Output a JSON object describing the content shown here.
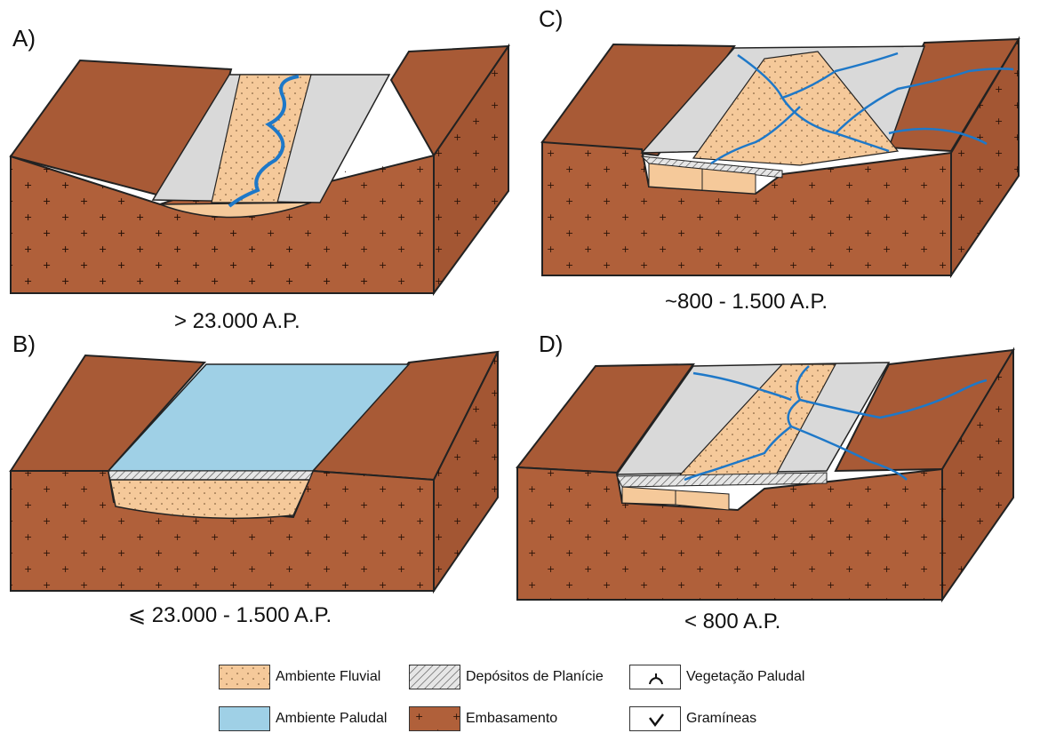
{
  "panels": [
    {
      "id": "A",
      "letter": "A)",
      "caption": "> 23.000 A.P."
    },
    {
      "id": "B",
      "letter": "B)",
      "caption": "⩽ 23.000 - 1.500 A.P."
    },
    {
      "id": "C",
      "letter": "C)",
      "caption": "~800 - 1.500 A.P."
    },
    {
      "id": "D",
      "letter": "D)",
      "caption": "< 800 A.P."
    }
  ],
  "legend": {
    "fluvial": "Ambiente Fluvial",
    "paludal": "Ambiente Paludal",
    "planicie": "Depósitos de Planície",
    "embasamento": "Embasamento",
    "vegetacao": "Vegetação Paludal",
    "gramineas": "Gramíneas"
  },
  "colors": {
    "embasamento": "#b0603a",
    "embasamento_top": "#a85a36",
    "fluvial": "#f5c99a",
    "paludal": "#9fd0e6",
    "planicie": "#d9d9d9",
    "river": "#1e78c8",
    "outline": "#222222"
  }
}
